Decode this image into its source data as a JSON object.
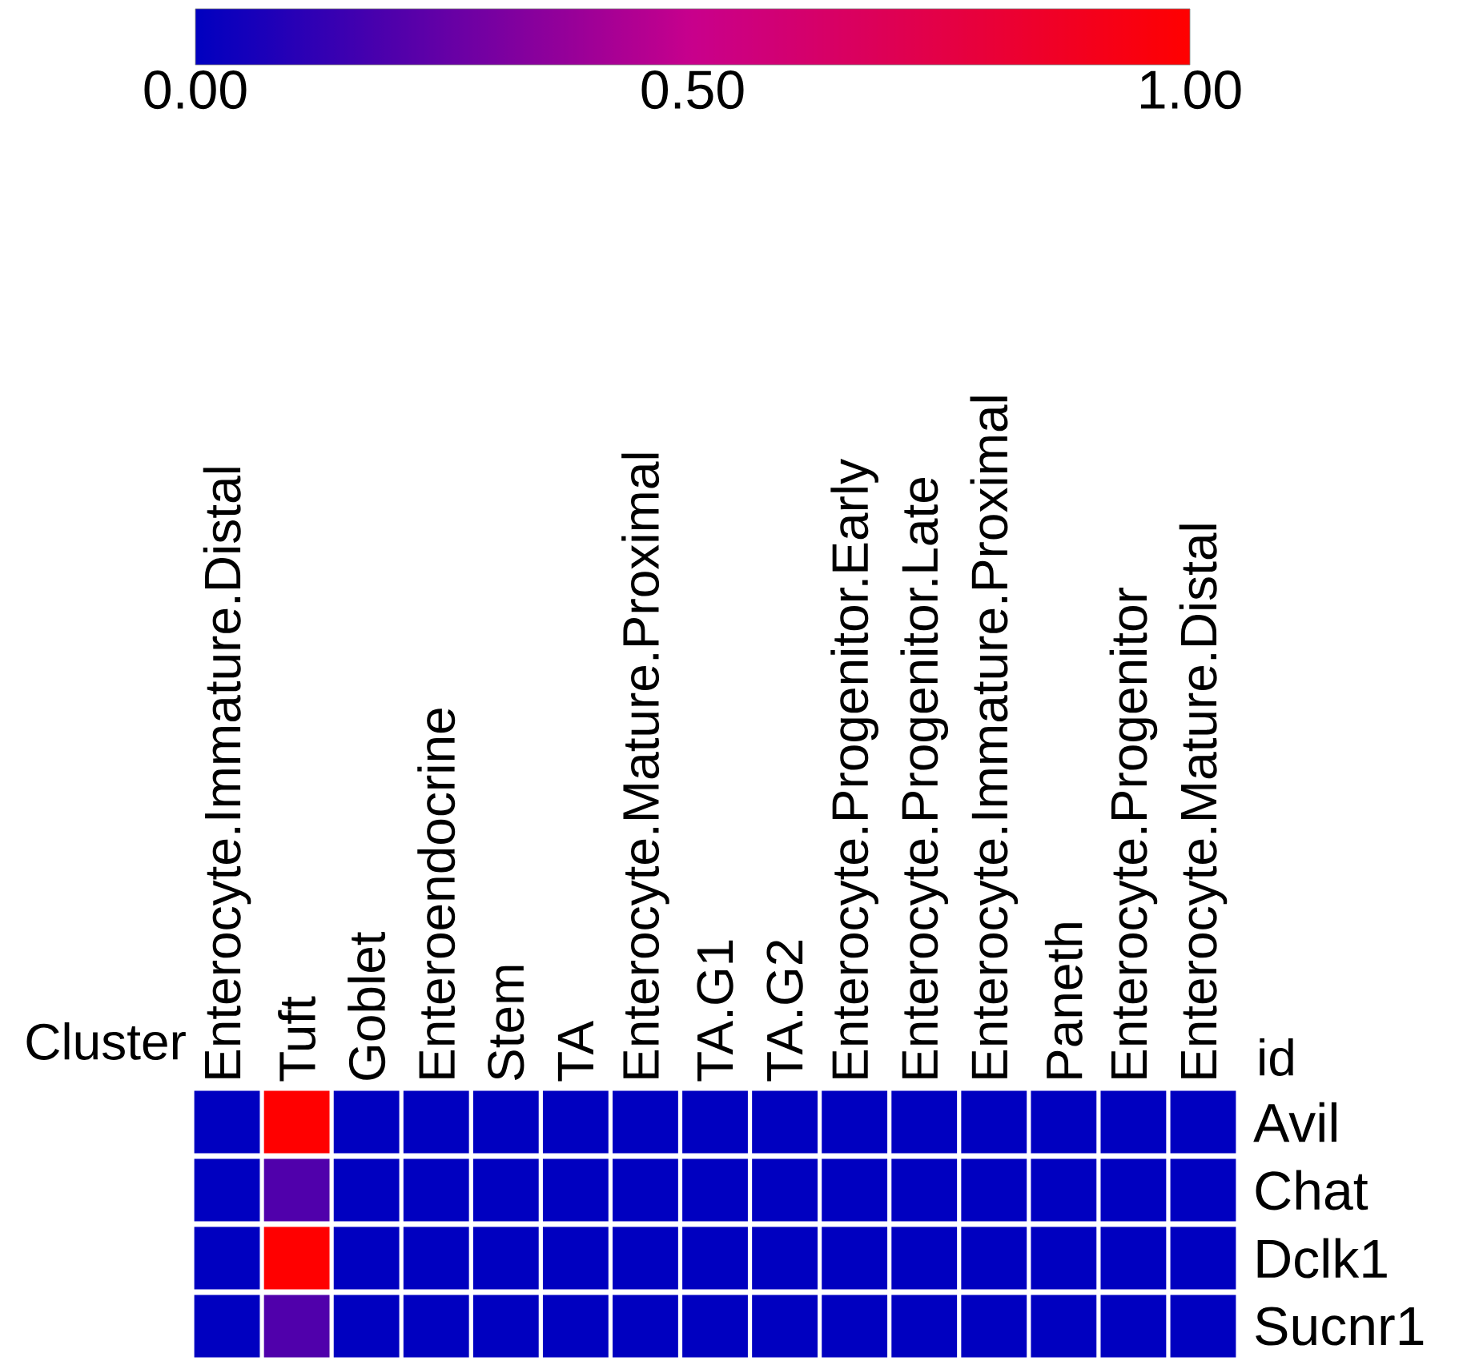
{
  "chart_data": {
    "type": "heatmap",
    "xlabel": "Cluster",
    "ylabel": "id",
    "categories": [
      "Enterocyte.Immature.Distal",
      "Tuft",
      "Goblet",
      "Enteroendocrine",
      "Stem",
      "TA",
      "Enterocyte.Mature.Proximal",
      "TA.G1",
      "TA.G2",
      "Enterocyte.Progenitor.Early",
      "Enterocyte.Progenitor.Late",
      "Enterocyte.Immature.Proximal",
      "Paneth",
      "Enterocyte.Progenitor",
      "Enterocyte.Mature.Distal"
    ],
    "y_categories": [
      "Avil",
      "Chat",
      "Dclk1",
      "Sucnr1"
    ],
    "cells": [
      [
        0,
        1,
        0,
        0,
        0,
        0,
        0,
        0,
        0,
        0,
        0,
        0,
        0,
        0,
        0
      ],
      [
        0,
        0.2,
        0,
        0,
        0,
        0,
        0,
        0,
        0,
        0,
        0,
        0,
        0,
        0,
        0
      ],
      [
        0,
        1,
        0,
        0,
        0,
        0,
        0,
        0,
        0,
        0,
        0,
        0,
        0,
        0,
        0
      ],
      [
        0,
        0.2,
        0,
        0,
        0,
        0,
        0,
        0,
        0,
        0,
        0,
        0,
        0,
        0,
        0
      ]
    ],
    "clim": [
      0,
      1
    ],
    "cticks": [
      {
        "value": 0,
        "label": "0.00"
      },
      {
        "value": 0.5,
        "label": "0.50"
      },
      {
        "value": 1,
        "label": "1.00"
      }
    ]
  }
}
